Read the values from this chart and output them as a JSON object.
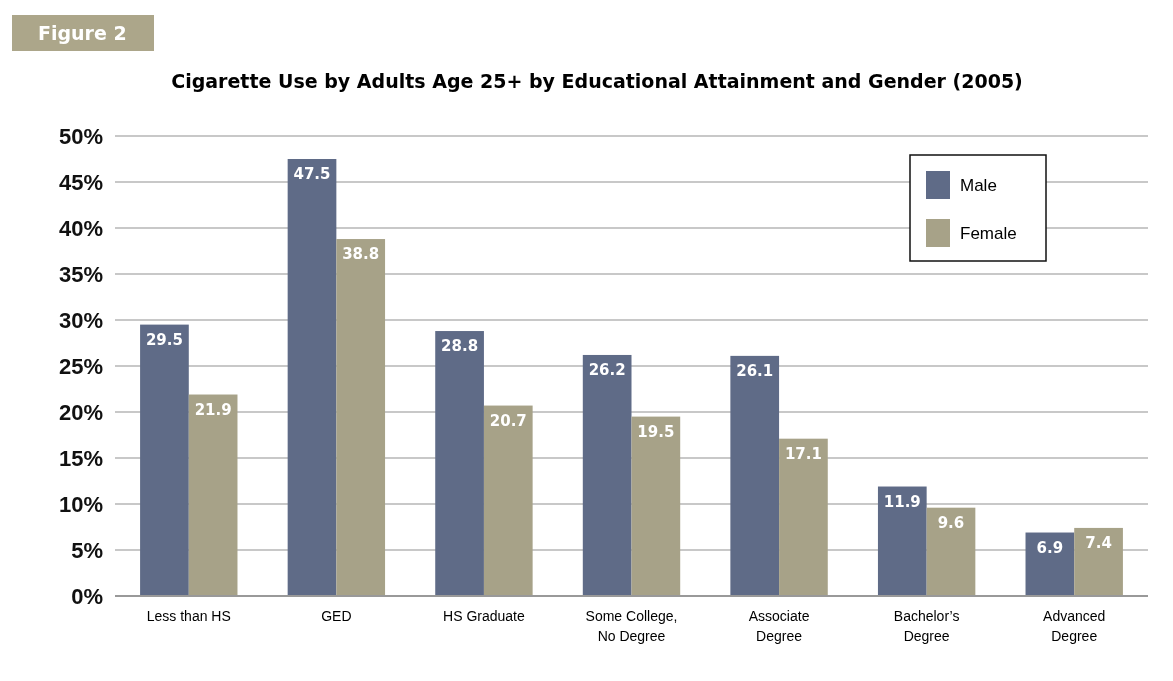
{
  "chart_data": {
    "type": "bar",
    "title": "Cigarette Use by Adults Age 25+ by Educational Attainment and Gender (2005)",
    "annotations": [
      "Figure 2"
    ],
    "categories": [
      "Less than HS",
      "GED",
      "HS Graduate",
      "Some College, No Degree",
      "Associate Degree",
      "Bachelor’s Degree",
      "Advanced Degree"
    ],
    "series": [
      {
        "name": "Male",
        "color": "#5f6b87",
        "values": [
          29.5,
          47.5,
          28.8,
          26.2,
          26.1,
          11.9,
          6.9
        ]
      },
      {
        "name": "Female",
        "color": "#a7a288",
        "values": [
          21.9,
          38.8,
          20.7,
          19.5,
          17.1,
          9.6,
          7.4
        ]
      }
    ],
    "ylim": [
      0,
      50
    ],
    "yticks": [
      {
        "value": 0,
        "label": "0%"
      },
      {
        "value": 5,
        "label": "5%"
      },
      {
        "value": 10,
        "label": "10%"
      },
      {
        "value": 15,
        "label": "15%"
      },
      {
        "value": 20,
        "label": "20%"
      },
      {
        "value": 25,
        "label": "25%"
      },
      {
        "value": 30,
        "label": "30%"
      },
      {
        "value": 35,
        "label": "35%"
      },
      {
        "value": 40,
        "label": "40%"
      },
      {
        "value": 45,
        "label": "45%"
      },
      {
        "value": 50,
        "label": "50%"
      }
    ],
    "grid": true,
    "legend": "top right",
    "data_labels": true
  }
}
